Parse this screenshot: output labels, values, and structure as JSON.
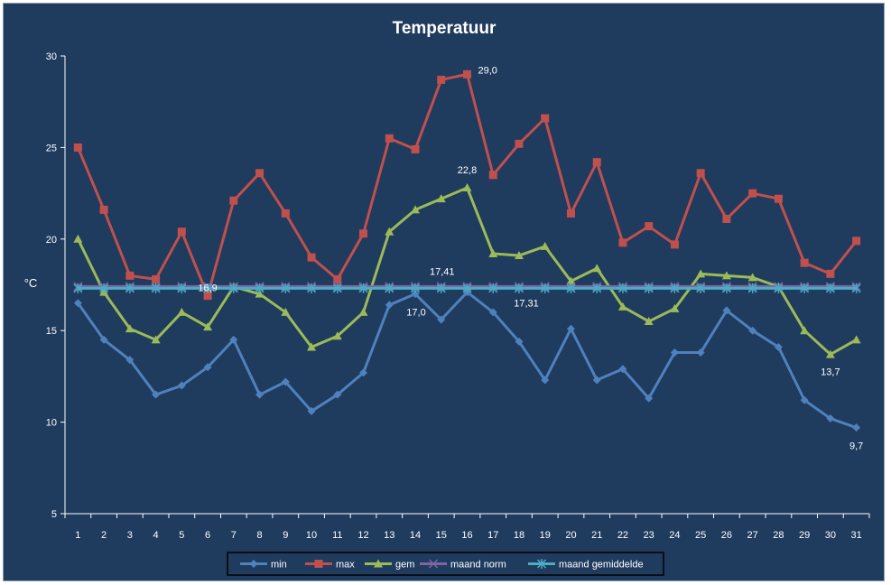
{
  "chart_data": {
    "type": "line",
    "title": "Temperatuur",
    "ylabel": "°C",
    "xlabel": "",
    "ylim": [
      5,
      30
    ],
    "yticks": [
      5,
      10,
      15,
      20,
      25,
      30
    ],
    "grid": false,
    "legend_position": "bottom",
    "categories": [
      "1",
      "2",
      "3",
      "4",
      "5",
      "6",
      "7",
      "8",
      "9",
      "10",
      "11",
      "12",
      "13",
      "14",
      "15",
      "16",
      "17",
      "18",
      "19",
      "20",
      "21",
      "22",
      "23",
      "24",
      "25",
      "26",
      "27",
      "28",
      "29",
      "30",
      "31"
    ],
    "series": [
      {
        "name": "min",
        "color": "#4f81bd",
        "marker": "diamond",
        "values": [
          16.5,
          14.5,
          13.4,
          11.5,
          12.0,
          13.0,
          14.5,
          11.5,
          12.2,
          10.6,
          11.5,
          12.7,
          16.4,
          17.0,
          15.6,
          17.1,
          16.0,
          14.4,
          12.3,
          15.1,
          12.3,
          12.9,
          11.3,
          13.8,
          13.8,
          16.1,
          15.0,
          14.1,
          11.2,
          10.2,
          9.7
        ]
      },
      {
        "name": "max",
        "color": "#c0504d",
        "marker": "square",
        "values": [
          25.0,
          21.6,
          18.0,
          17.8,
          20.4,
          16.9,
          22.1,
          23.6,
          21.4,
          19.0,
          17.8,
          20.3,
          25.5,
          24.9,
          28.7,
          29.0,
          23.5,
          25.2,
          26.6,
          21.4,
          24.2,
          19.8,
          20.7,
          19.7,
          23.6,
          21.1,
          22.5,
          22.2,
          18.7,
          18.1,
          19.9
        ]
      },
      {
        "name": "gem",
        "color": "#9bbb59",
        "marker": "triangle",
        "values": [
          20.0,
          17.1,
          15.1,
          14.5,
          16.0,
          15.2,
          17.4,
          17.0,
          16.0,
          14.1,
          14.7,
          16.0,
          20.4,
          21.6,
          22.2,
          22.8,
          19.2,
          19.1,
          19.6,
          17.7,
          18.4,
          16.3,
          15.5,
          16.2,
          18.1,
          18.0,
          17.9,
          17.4,
          15.0,
          13.7,
          14.5
        ]
      },
      {
        "name": "maand norm",
        "color": "#8064a2",
        "marker": "x",
        "values": [
          17.41,
          17.41,
          17.41,
          17.41,
          17.41,
          17.41,
          17.41,
          17.41,
          17.41,
          17.41,
          17.41,
          17.41,
          17.41,
          17.41,
          17.41,
          17.41,
          17.41,
          17.41,
          17.41,
          17.41,
          17.41,
          17.41,
          17.41,
          17.41,
          17.41,
          17.41,
          17.41,
          17.41,
          17.41,
          17.41,
          17.41
        ]
      },
      {
        "name": "maand gemiddelde",
        "color": "#4bacc6",
        "marker": "star",
        "values": [
          17.31,
          17.31,
          17.31,
          17.31,
          17.31,
          17.31,
          17.31,
          17.31,
          17.31,
          17.31,
          17.31,
          17.31,
          17.31,
          17.31,
          17.31,
          17.31,
          17.31,
          17.31,
          17.31,
          17.31,
          17.31,
          17.31,
          17.31,
          17.31,
          17.31,
          17.31,
          17.31,
          17.31,
          17.31,
          17.31,
          17.31
        ]
      }
    ],
    "annotations": [
      {
        "text": "29,0",
        "series": "max",
        "x": "16"
      },
      {
        "text": "22,8",
        "series": "gem",
        "x": "16"
      },
      {
        "text": "16,9",
        "series": "max",
        "x": "6"
      },
      {
        "text": "17,41",
        "series": "maand norm",
        "x": "15"
      },
      {
        "text": "17,0",
        "series": "min",
        "x": "14"
      },
      {
        "text": "17,31",
        "series": "maand gemiddelde",
        "x": "18"
      },
      {
        "text": "13,7",
        "series": "gem",
        "x": "30"
      },
      {
        "text": "9,7",
        "series": "min",
        "x": "31"
      }
    ]
  }
}
